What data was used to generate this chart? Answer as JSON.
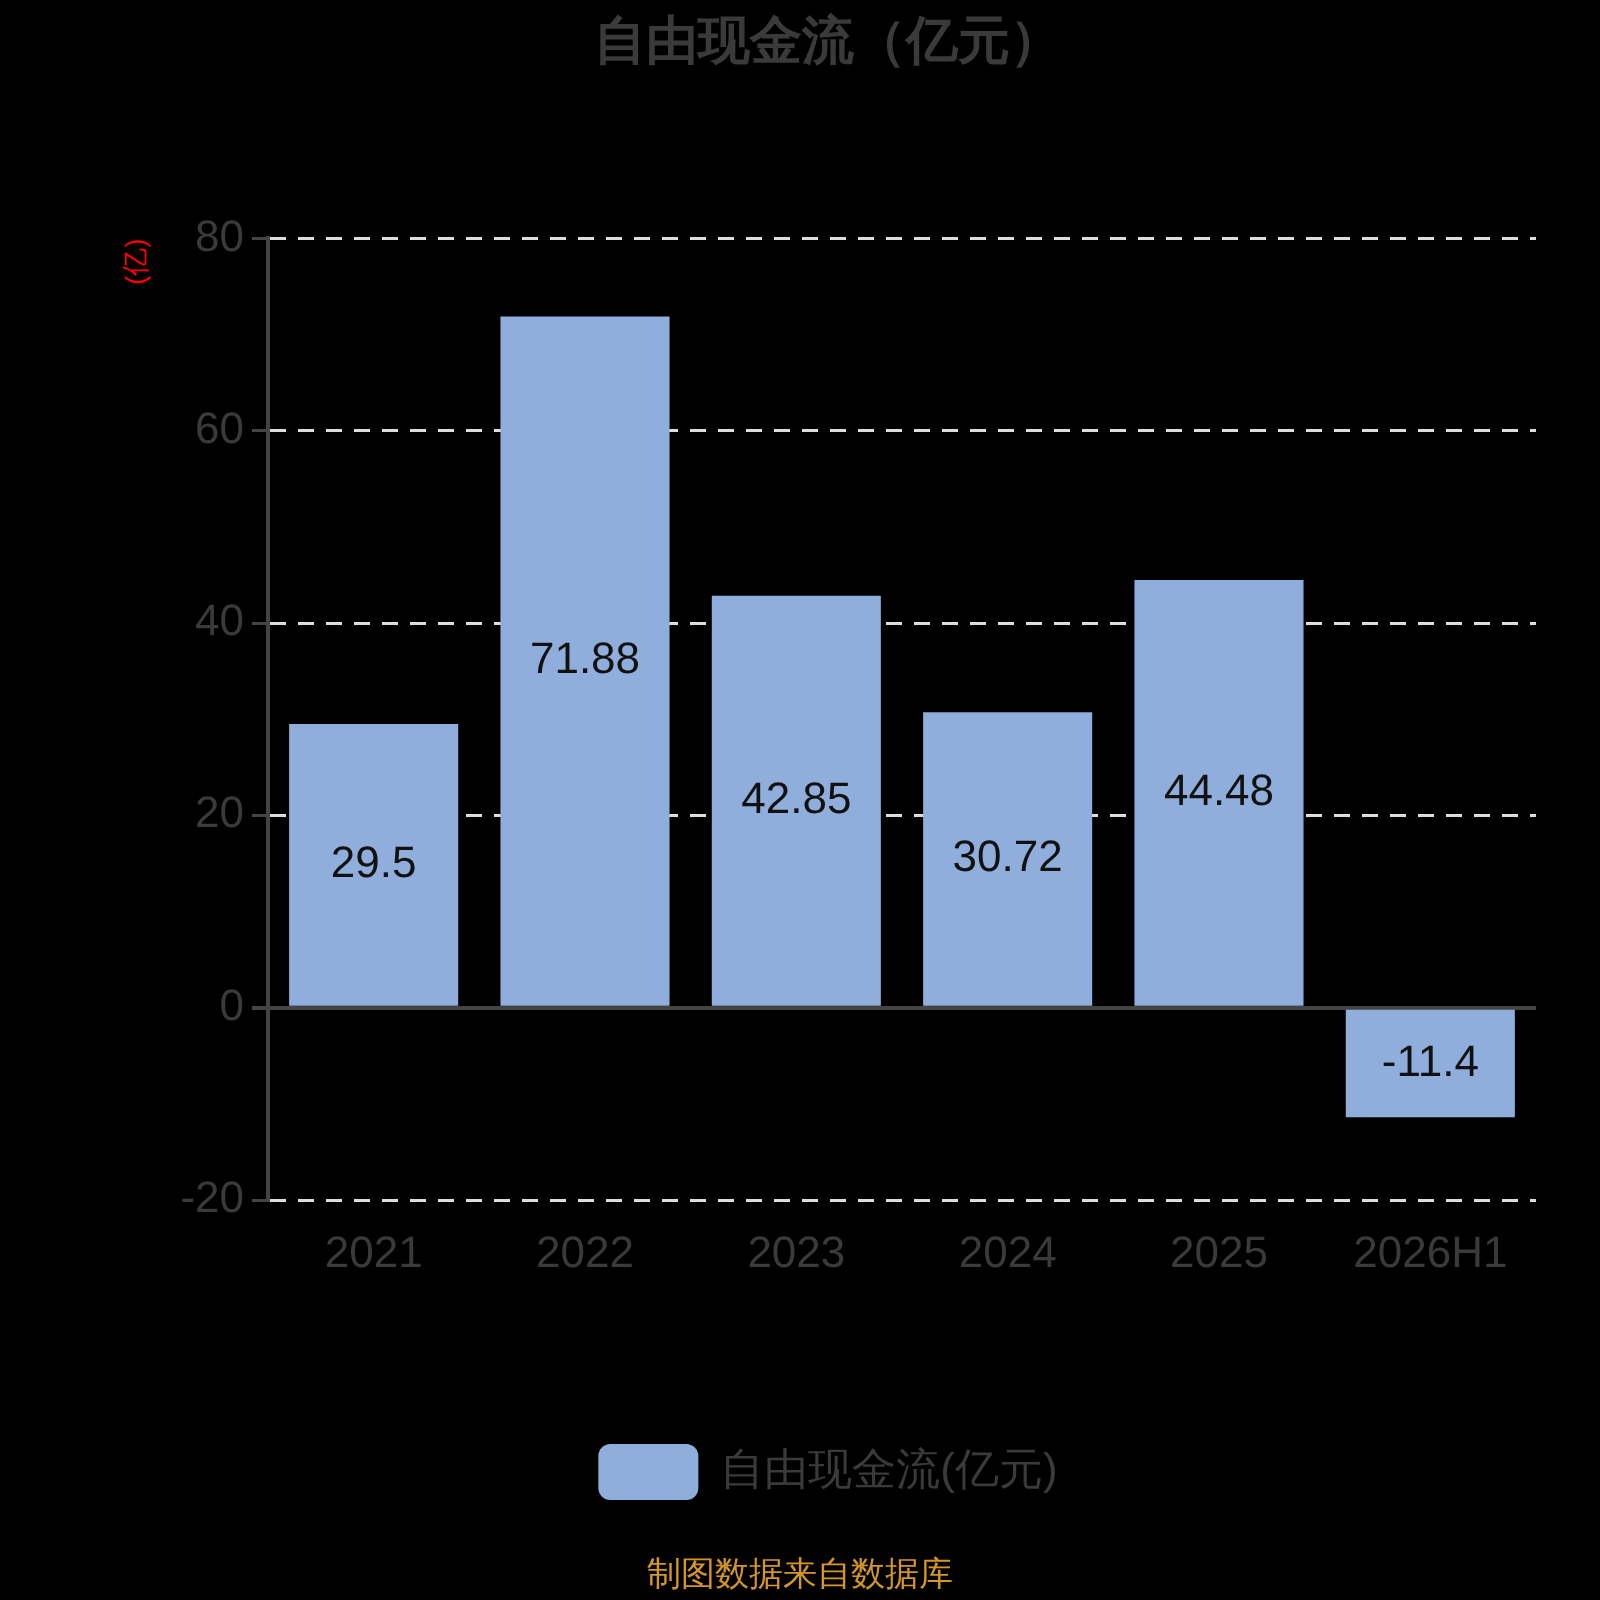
{
  "chart_data": {
    "type": "bar",
    "title": "自由现金流（亿元）",
    "ylabel": "(亿)",
    "categories": [
      "2021",
      "2022",
      "2023",
      "2024",
      "2025",
      "2026H1"
    ],
    "series": [
      {
        "name": "自由现金流(亿元)",
        "color": "#8faedc",
        "values": [
          29.5,
          71.88,
          42.85,
          30.72,
          44.48,
          -11.4
        ]
      }
    ],
    "ylim": [
      -20,
      80
    ],
    "yticks": [
      -20,
      0,
      20,
      40,
      60,
      80
    ],
    "grid": "y",
    "legend": "bottom",
    "data_labels": true,
    "annotations": [
      "制图数据来自数据库"
    ]
  }
}
